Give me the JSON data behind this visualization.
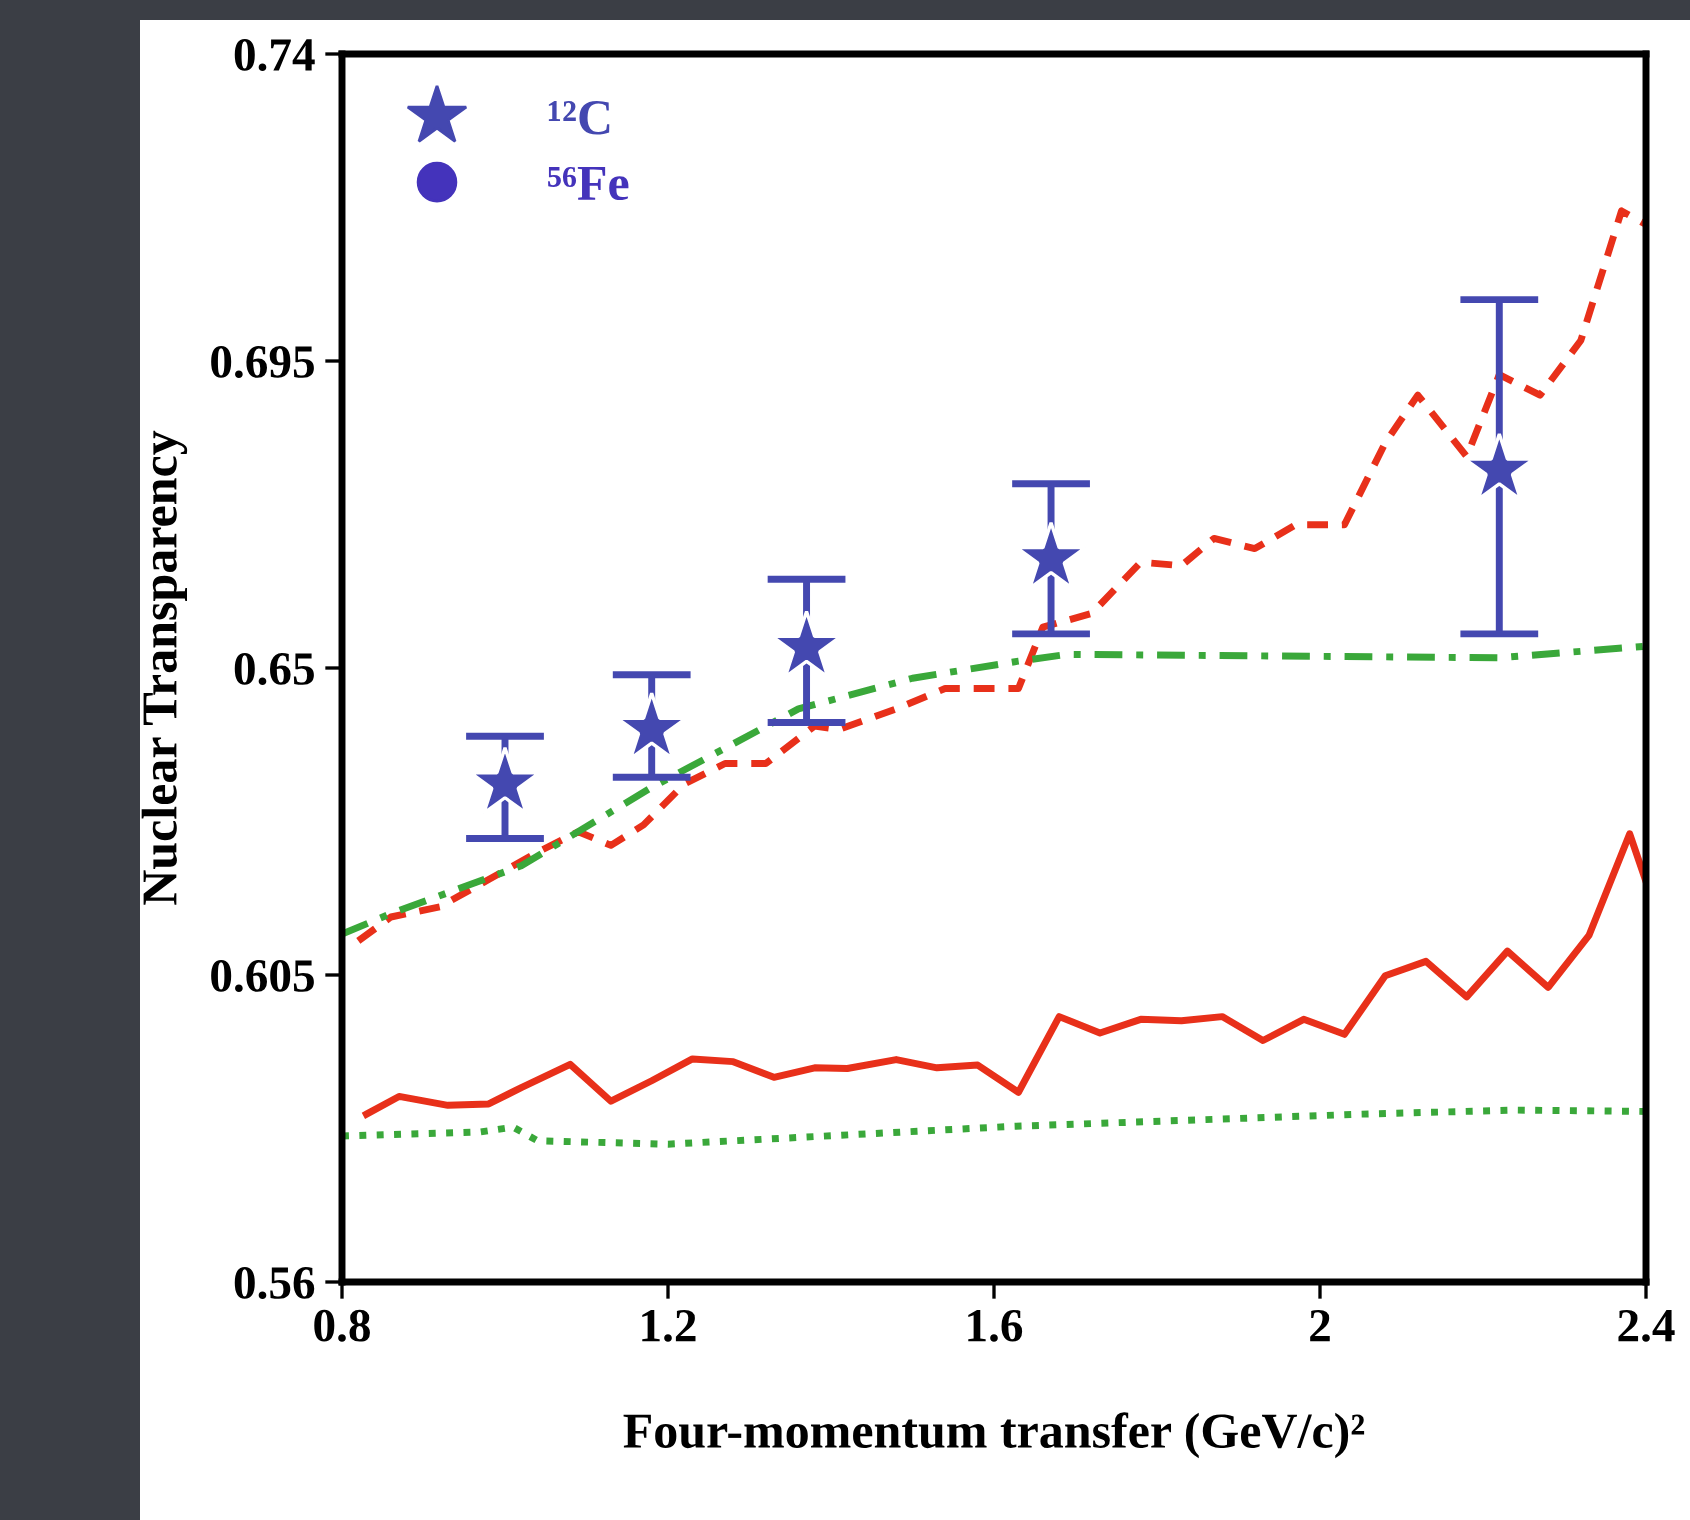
{
  "chart_data": {
    "type": "scatter",
    "xlabel": "Four-momentum transfer (GeV/c)²",
    "ylabel": "Nuclear Transparency",
    "xlim": [
      0.8,
      2.4
    ],
    "ylim": [
      0.56,
      0.74
    ],
    "xticks": [
      0.8,
      1.2,
      1.6,
      2,
      2.4
    ],
    "yticks": [
      0.56,
      0.605,
      0.65,
      0.695,
      0.74
    ],
    "grid": false,
    "legend": "top left",
    "series": [
      {
        "name": "¹²C",
        "marker": "star",
        "color": "#4448b0",
        "x": [
          1.0,
          1.18,
          1.37,
          1.67,
          2.22
        ],
        "values": [
          0.633,
          0.641,
          0.653,
          0.666,
          0.679
        ],
        "errors": [
          [
            0.625,
            0.64
          ],
          [
            0.634,
            0.649
          ],
          [
            0.642,
            0.663
          ],
          [
            0.655,
            0.677
          ],
          [
            0.655,
            0.704
          ]
        ]
      },
      {
        "name": "⁵⁶Fe",
        "marker": "circle",
        "color": "#4433bb"
      },
      {
        "type": "line",
        "line_style": "dashed",
        "color": "#e8301a",
        "x": [
          0.82,
          0.86,
          0.92,
          0.98,
          1.04,
          1.09,
          1.13,
          1.17,
          1.22,
          1.27,
          1.32,
          1.38,
          1.41,
          1.48,
          1.54,
          1.63,
          1.66,
          1.72,
          1.78,
          1.83,
          1.87,
          1.92,
          1.97,
          2.03,
          2.08,
          2.12,
          2.18,
          2.22,
          2.27,
          2.32,
          2.37,
          2.4
        ],
        "values": [
          0.61,
          0.6135,
          0.615,
          0.619,
          0.623,
          0.626,
          0.624,
          0.627,
          0.633,
          0.636,
          0.636,
          0.6415,
          0.641,
          0.644,
          0.647,
          0.647,
          0.656,
          0.658,
          0.6655,
          0.665,
          0.669,
          0.6675,
          0.671,
          0.671,
          0.683,
          0.69,
          0.681,
          0.693,
          0.69,
          0.698,
          0.717,
          0.715
        ]
      },
      {
        "type": "line",
        "line_style": "dashdot",
        "color": "#3aa83a",
        "x": [
          0.8,
          0.86,
          1.02,
          1.18,
          1.36,
          1.5,
          1.63,
          1.69,
          2.22,
          2.4
        ],
        "values": [
          0.611,
          0.614,
          0.621,
          0.6325,
          0.644,
          0.6485,
          0.651,
          0.652,
          0.6515,
          0.6532
        ]
      },
      {
        "type": "line",
        "line_style": "solid",
        "color": "#e8301a",
        "x": [
          0.83,
          0.87,
          0.93,
          0.98,
          1.02,
          1.08,
          1.13,
          1.18,
          1.23,
          1.28,
          1.33,
          1.38,
          1.42,
          1.48,
          1.53,
          1.58,
          1.63,
          1.68,
          1.73,
          1.78,
          1.83,
          1.88,
          1.93,
          1.98,
          2.03,
          2.08,
          2.13,
          2.18,
          2.23,
          2.28,
          2.33,
          2.38,
          2.4
        ],
        "values": [
          0.5846,
          0.5872,
          0.5859,
          0.5861,
          0.5885,
          0.5919,
          0.5865,
          0.5895,
          0.5927,
          0.5923,
          0.59,
          0.5914,
          0.5913,
          0.5926,
          0.5914,
          0.5918,
          0.5878,
          0.5989,
          0.5965,
          0.5985,
          0.5983,
          0.5989,
          0.5954,
          0.5985,
          0.5963,
          0.6049,
          0.607,
          0.6018,
          0.6085,
          0.6032,
          0.6108,
          0.6257,
          0.6187
        ]
      },
      {
        "type": "line",
        "line_style": "dotted",
        "color": "#3aa83a",
        "x": [
          0.8,
          0.97,
          1.01,
          1.04,
          1.2,
          1.62,
          2.05,
          2.24,
          2.4
        ],
        "values": [
          0.5814,
          0.582,
          0.5827,
          0.5807,
          0.5802,
          0.5828,
          0.5846,
          0.5852,
          0.585
        ]
      }
    ]
  }
}
